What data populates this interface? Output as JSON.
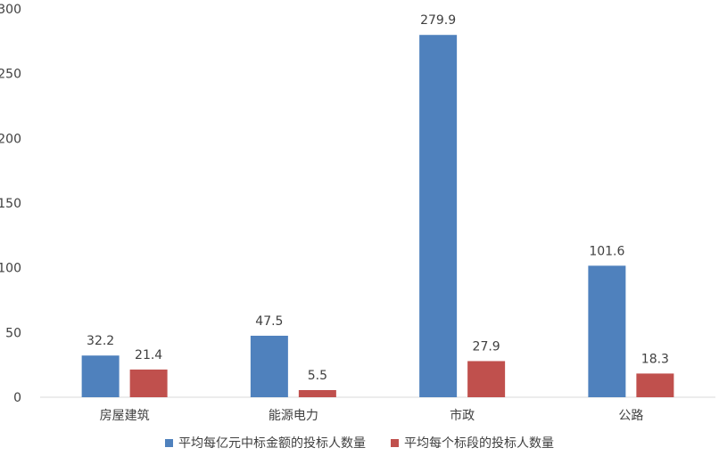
{
  "chart_data": {
    "type": "bar",
    "categories": [
      "房屋建筑",
      "能源电力",
      "市政",
      "公路"
    ],
    "series": [
      {
        "name": "平均每亿元中标金额的投标人数量",
        "values": [
          32.2,
          47.5,
          279.9,
          101.6
        ],
        "color": "#4f81bd"
      },
      {
        "name": "平均每个标段的投标人数量",
        "values": [
          21.4,
          5.5,
          27.9,
          18.3
        ],
        "color": "#c0504d"
      }
    ],
    "ylim": [
      0,
      300
    ],
    "yticks": [
      0,
      50,
      100,
      150,
      200,
      250,
      300
    ],
    "grid": false,
    "legend_position": "bottom"
  }
}
